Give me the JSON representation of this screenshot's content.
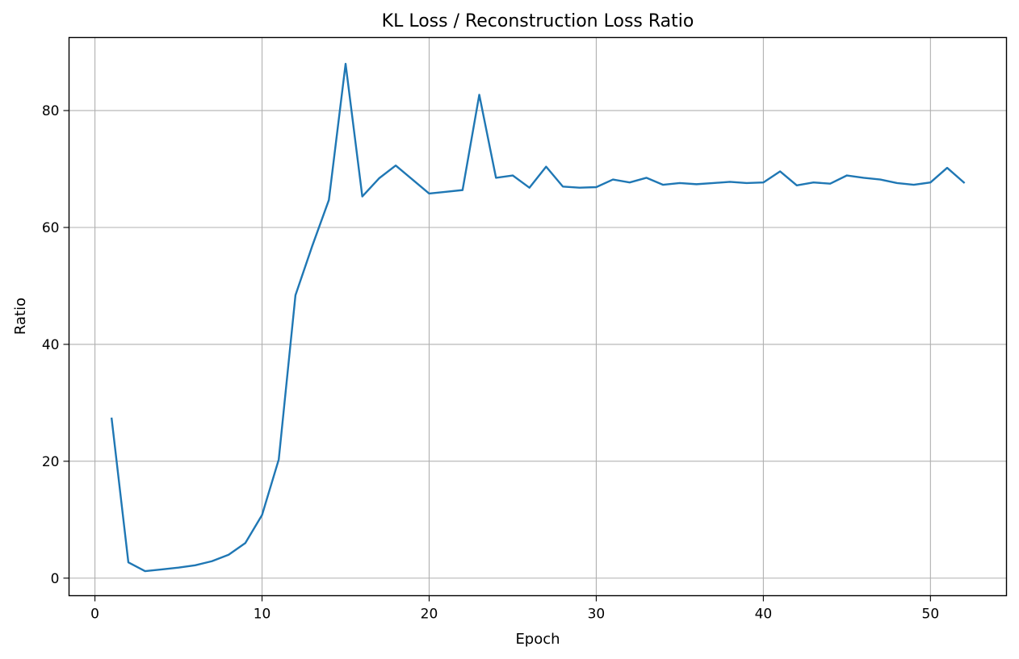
{
  "chart_data": {
    "type": "line",
    "title": "KL Loss / Reconstruction Loss Ratio",
    "xlabel": "Epoch",
    "ylabel": "Ratio",
    "xlim": [
      -1.55,
      54.55
    ],
    "ylim": [
      -3,
      92.5
    ],
    "xticks": [
      0,
      10,
      20,
      30,
      40,
      50
    ],
    "yticks": [
      0,
      20,
      40,
      60,
      80
    ],
    "grid": true,
    "line_color": "#1f77b4",
    "series": [
      {
        "x": [
          1,
          2,
          3,
          4,
          5,
          6,
          7,
          8,
          9,
          10,
          11,
          12,
          13,
          14,
          15,
          16,
          17,
          18,
          19,
          20,
          21,
          22,
          23,
          24,
          25,
          26,
          27,
          28,
          29,
          30,
          31,
          32,
          33,
          34,
          35,
          36,
          37,
          38,
          39,
          40,
          41,
          42,
          43,
          44,
          45,
          46,
          47,
          48,
          49,
          50,
          51,
          52
        ],
        "values": [
          27.3,
          2.7,
          1.2,
          1.5,
          1.8,
          2.2,
          2.9,
          4.0,
          6.0,
          10.8,
          20.3,
          48.4,
          56.8,
          64.7,
          88.0,
          65.3,
          68.4,
          70.6,
          68.2,
          65.8,
          66.1,
          66.4,
          82.7,
          68.5,
          68.9,
          66.8,
          70.4,
          67.0,
          66.8,
          66.9,
          68.2,
          67.7,
          68.5,
          67.3,
          67.6,
          67.4,
          67.6,
          67.8,
          67.6,
          67.7,
          69.6,
          67.2,
          67.7,
          67.5,
          68.9,
          68.5,
          68.2,
          67.6,
          67.3,
          67.7,
          70.2,
          67.7
        ]
      }
    ]
  }
}
